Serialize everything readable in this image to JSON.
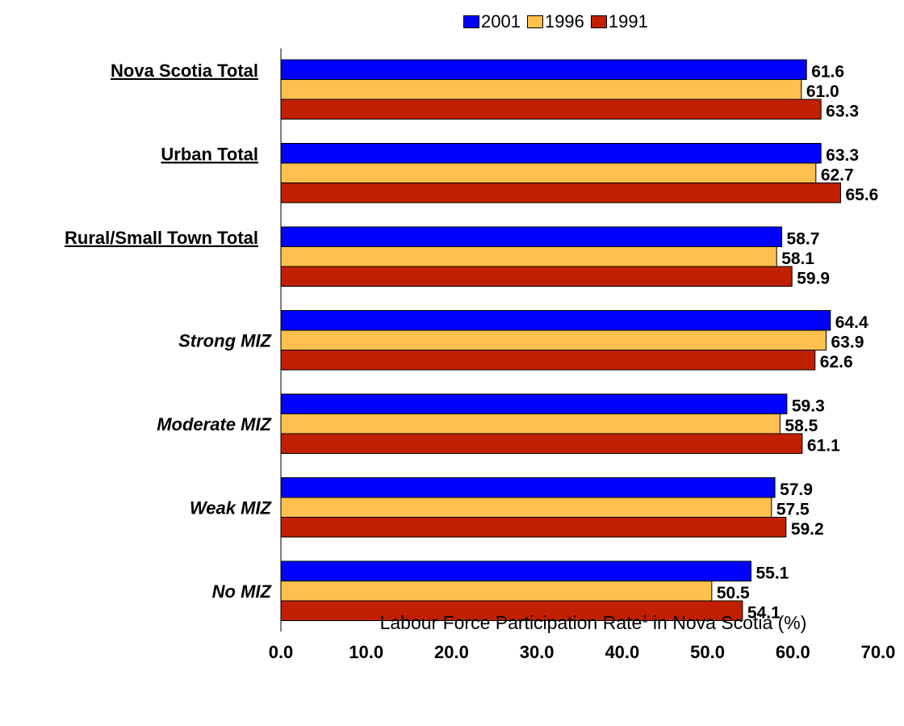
{
  "chart_data": {
    "type": "bar",
    "orientation": "horizontal",
    "categories": [
      "Nova Scotia Total",
      "Urban Total",
      "Rural/Small Town Total",
      "Strong MIZ",
      "Moderate MIZ",
      "Weak MIZ",
      "No MIZ"
    ],
    "category_styles": [
      "underline",
      "underline",
      "underline",
      "italic",
      "italic",
      "italic",
      "italic"
    ],
    "series": [
      {
        "name": "2001",
        "color": "#0000ff",
        "values": [
          61.6,
          63.3,
          58.7,
          64.4,
          59.3,
          57.9,
          55.1
        ]
      },
      {
        "name": "1996",
        "color": "#ffc04d",
        "values": [
          61.0,
          62.7,
          58.1,
          63.9,
          58.5,
          57.5,
          50.5
        ]
      },
      {
        "name": "1991",
        "color": "#c02000",
        "values": [
          63.3,
          65.6,
          59.9,
          62.6,
          61.1,
          59.2,
          54.1
        ]
      }
    ],
    "xlim": [
      0,
      70
    ],
    "xticks": [
      "0.0",
      "10.0",
      "20.0",
      "30.0",
      "40.0",
      "50.0",
      "60.0",
      "70.0"
    ],
    "xlabel_main": "Labour Force Participation Rate",
    "xlabel_sup": "1",
    "xlabel_tail": " in Nova Scotia (%)",
    "legend_position": "top"
  }
}
